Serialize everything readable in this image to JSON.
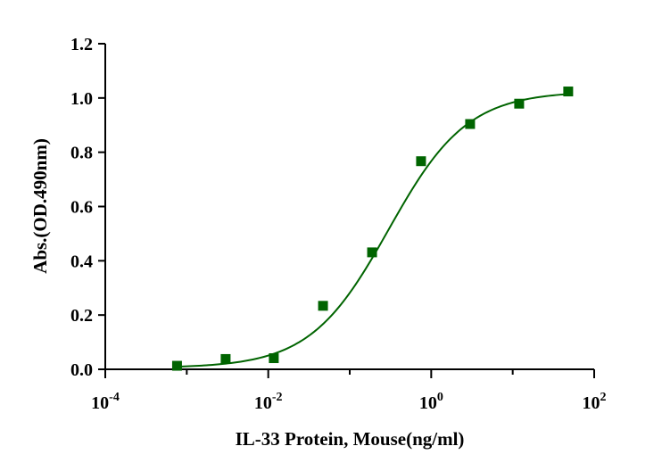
{
  "chart_data": {
    "type": "scatter",
    "title": "",
    "xlabel": "IL-33 Protein, Mouse(ng/ml)",
    "ylabel": "Abs.(OD.490nm)",
    "x_scale": "log",
    "xlim": [
      0.0001,
      100
    ],
    "ylim": [
      0,
      1.2
    ],
    "x_ticks": [
      {
        "value": 0.0001,
        "base": "10",
        "exp": "-4"
      },
      {
        "value": 0.01,
        "base": "10",
        "exp": "-2"
      },
      {
        "value": 1,
        "base": "10",
        "exp": "0"
      },
      {
        "value": 100,
        "base": "10",
        "exp": "2"
      }
    ],
    "y_ticks": [
      "0.0",
      "0.2",
      "0.4",
      "0.6",
      "0.8",
      "1.0",
      "1.2"
    ],
    "grid": false,
    "legend": "none",
    "series": [
      {
        "x": [
          0.00076,
          0.003,
          0.0117,
          0.047,
          0.188,
          0.75,
          3.0,
          12.0,
          48.0
        ],
        "y": [
          0.013,
          0.038,
          0.041,
          0.234,
          0.431,
          0.767,
          0.904,
          0.979,
          1.024
        ],
        "marker": "square",
        "color": "#006400"
      }
    ],
    "fit": {
      "model": "4PL",
      "bottom": 0.005,
      "top": 1.025,
      "ec50": 0.3,
      "hill": 0.9,
      "color": "#006400"
    }
  }
}
